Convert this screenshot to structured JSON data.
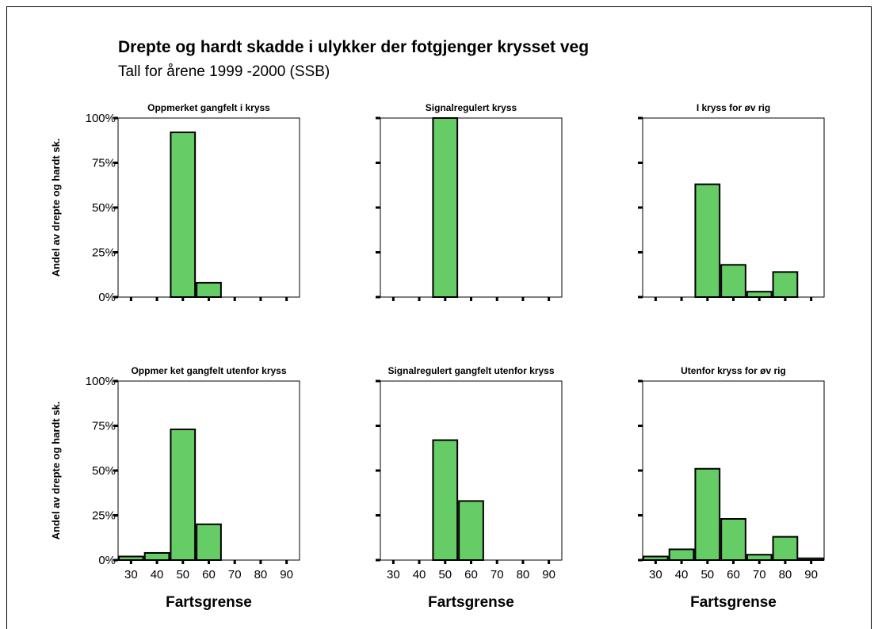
{
  "title": "Drepte og hardt skadde i ulykker der fotgjenger krysset veg",
  "subtitle": "Tall for årene 1999 -2000 (SSB)",
  "colors": {
    "bar_fill": "#66cc66",
    "bar_stroke": "#000000",
    "axis": "#000000",
    "background": "#ffffff"
  },
  "chart_data": [
    {
      "type": "bar",
      "title": "Oppmerket gangfelt i kryss",
      "categories": [
        "30",
        "40",
        "50",
        "60",
        "70",
        "80",
        "90"
      ],
      "values": [
        0,
        0,
        92,
        8,
        0,
        0,
        0
      ],
      "xlabel": "",
      "ylabel": "Andel av drepte og hardt sk.",
      "ylim": [
        0,
        100
      ],
      "yticks": [
        "0%",
        "25%",
        "50%",
        "75%",
        "100%"
      ],
      "show_xtick_labels": false
    },
    {
      "type": "bar",
      "title": "Signalregulert kryss",
      "categories": [
        "30",
        "40",
        "50",
        "60",
        "70",
        "80",
        "90"
      ],
      "values": [
        0,
        0,
        100,
        0,
        0,
        0,
        0
      ],
      "xlabel": "",
      "ylabel": "",
      "ylim": [
        0,
        100
      ],
      "yticks": [],
      "show_xtick_labels": false
    },
    {
      "type": "bar",
      "title": "I kryss for øv rig",
      "categories": [
        "30",
        "40",
        "50",
        "60",
        "70",
        "80",
        "90"
      ],
      "values": [
        0,
        0,
        63,
        18,
        3,
        14,
        0
      ],
      "xlabel": "",
      "ylabel": "",
      "ylim": [
        0,
        100
      ],
      "yticks": [],
      "show_xtick_labels": false
    },
    {
      "type": "bar",
      "title": "Oppmer ket gangfelt utenfor kryss",
      "categories": [
        "30",
        "40",
        "50",
        "60",
        "70",
        "80",
        "90"
      ],
      "values": [
        2,
        4,
        73,
        20,
        0,
        0,
        0
      ],
      "xlabel": "Fartsgrense",
      "ylabel": "Andel av drepte og hardt sk.",
      "ylim": [
        0,
        100
      ],
      "yticks": [
        "0%",
        "25%",
        "50%",
        "75%",
        "100%"
      ],
      "show_xtick_labels": true
    },
    {
      "type": "bar",
      "title": "Signalregulert gangfelt utenfor kryss",
      "categories": [
        "30",
        "40",
        "50",
        "60",
        "70",
        "80",
        "90"
      ],
      "values": [
        0,
        0,
        67,
        33,
        0,
        0,
        0
      ],
      "xlabel": "Fartsgrense",
      "ylabel": "",
      "ylim": [
        0,
        100
      ],
      "yticks": [],
      "show_xtick_labels": true
    },
    {
      "type": "bar",
      "title": "Utenfor kryss for øv rig",
      "categories": [
        "30",
        "40",
        "50",
        "60",
        "70",
        "80",
        "90"
      ],
      "values": [
        2,
        6,
        51,
        23,
        3,
        13,
        1
      ],
      "xlabel": "Fartsgrense",
      "ylabel": "",
      "ylim": [
        0,
        100
      ],
      "yticks": [],
      "show_xtick_labels": true
    }
  ]
}
